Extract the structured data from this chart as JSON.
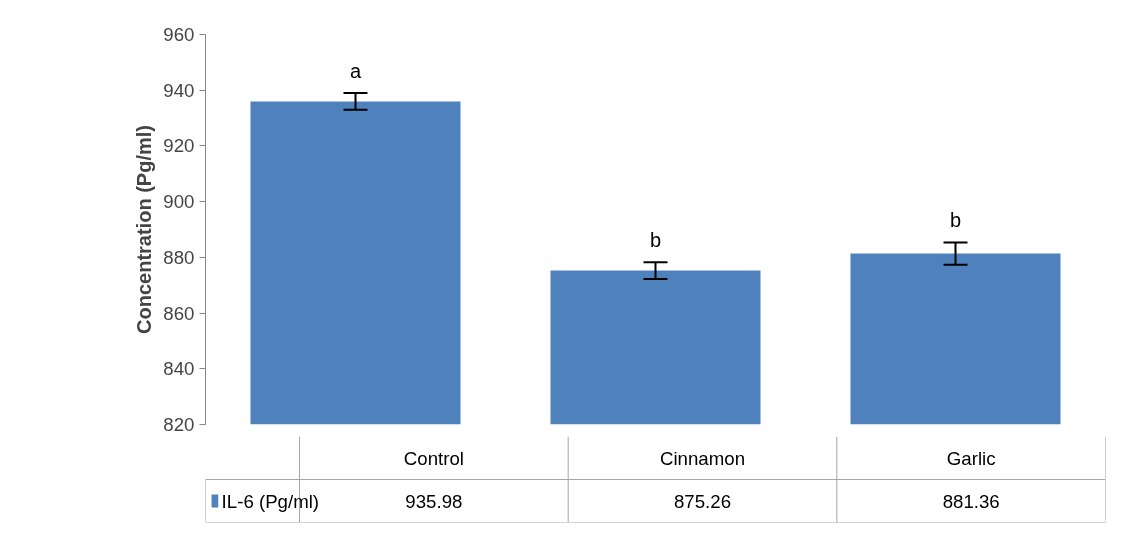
{
  "chart_data": {
    "type": "bar",
    "ylabel": "Concentration (Pg/ml)",
    "categories": [
      "Control",
      "Cinnamon",
      "Garlic"
    ],
    "series": [
      {
        "name": "IL-6 (Pg/ml)",
        "color": "#4f81bd",
        "values": [
          935.98,
          875.26,
          881.36
        ],
        "errors": [
          3,
          3,
          4
        ]
      }
    ],
    "ylim": [
      820,
      960
    ],
    "yticks": [
      820,
      840,
      860,
      880,
      900,
      920,
      940,
      960
    ],
    "annotations": [
      "a",
      "b",
      "b"
    ],
    "data_labels": true,
    "legend": "bottom left",
    "grid": false
  }
}
